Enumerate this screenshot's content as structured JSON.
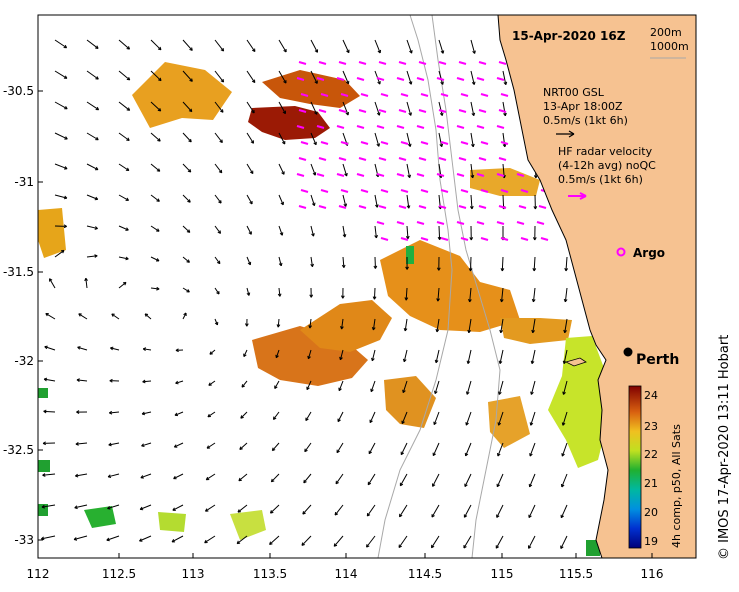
{
  "title": "15-Apr-2020 16Z",
  "depth_legend": [
    "200m",
    "1000m"
  ],
  "nrt": {
    "line1": "NRT00 GSL",
    "line2": "13-Apr 18:00Z",
    "line3": "0.5m/s (1kt 6h)"
  },
  "hf": {
    "line1": "HF radar velocity",
    "line2": "(4-12h avg) noQC",
    "line3": "0.5m/s (1kt 6h)"
  },
  "argo_label": "Argo",
  "city_label": "Perth",
  "colorbar": {
    "title": "4h comp, p50, All Sats",
    "ticks": [
      "24",
      "23",
      "22",
      "21",
      "20",
      "19"
    ]
  },
  "credit": "© IMOS 17-Apr-2020 13:11 Hobart",
  "axes": {
    "x_ticks": [
      "112",
      "112.5",
      "113",
      "113.5",
      "114",
      "114.5",
      "115",
      "115.5",
      "116"
    ],
    "y_ticks": [
      "-30.5",
      "-31",
      "-31.5",
      "-32",
      "-32.5",
      "-33"
    ]
  },
  "colors": {
    "land": "#f6c291",
    "argo": "#ff00ff",
    "hf_arrow": "#ff00ff",
    "sst_warm": "#e08a10",
    "sst_hot": "#8b1000",
    "sst_cool": "#b8e020",
    "sst_green": "#20a020"
  }
}
